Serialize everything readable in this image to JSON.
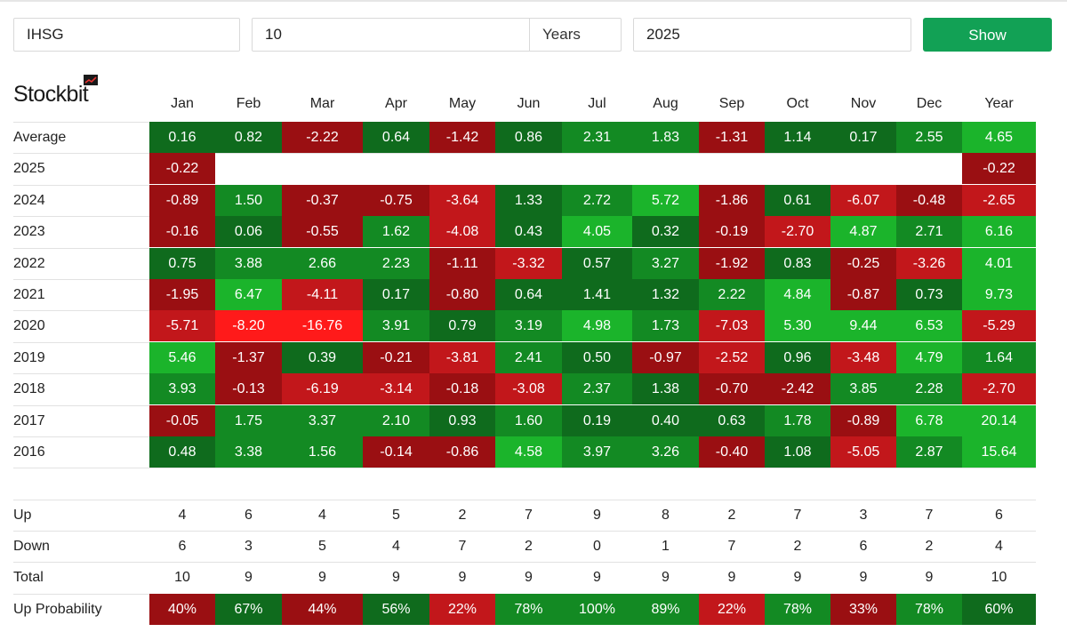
{
  "controls": {
    "symbol": "IHSG",
    "years_value": "10",
    "years_unit": "Years",
    "year": "2025",
    "show_label": "Show"
  },
  "brand": {
    "name": "Stockbit"
  },
  "table": {
    "columns": [
      "Jan",
      "Feb",
      "Mar",
      "Apr",
      "May",
      "Jun",
      "Jul",
      "Aug",
      "Sep",
      "Oct",
      "Nov",
      "Dec",
      "Year"
    ],
    "rows": [
      {
        "label": "Average",
        "values": [
          "0.16",
          "0.82",
          "-2.22",
          "0.64",
          "-1.42",
          "0.86",
          "2.31",
          "1.83",
          "-1.31",
          "1.14",
          "0.17",
          "2.55",
          "4.65"
        ]
      },
      {
        "label": "2025",
        "values": [
          "-0.22",
          "",
          "",
          "",
          "",
          "",
          "",
          "",
          "",
          "",
          "",
          "",
          "-0.22"
        ]
      },
      {
        "label": "2024",
        "values": [
          "-0.89",
          "1.50",
          "-0.37",
          "-0.75",
          "-3.64",
          "1.33",
          "2.72",
          "5.72",
          "-1.86",
          "0.61",
          "-6.07",
          "-0.48",
          "-2.65"
        ]
      },
      {
        "label": "2023",
        "values": [
          "-0.16",
          "0.06",
          "-0.55",
          "1.62",
          "-4.08",
          "0.43",
          "4.05",
          "0.32",
          "-0.19",
          "-2.70",
          "4.87",
          "2.71",
          "6.16"
        ]
      },
      {
        "label": "2022",
        "values": [
          "0.75",
          "3.88",
          "2.66",
          "2.23",
          "-1.11",
          "-3.32",
          "0.57",
          "3.27",
          "-1.92",
          "0.83",
          "-0.25",
          "-3.26",
          "4.01"
        ]
      },
      {
        "label": "2021",
        "values": [
          "-1.95",
          "6.47",
          "-4.11",
          "0.17",
          "-0.80",
          "0.64",
          "1.41",
          "1.32",
          "2.22",
          "4.84",
          "-0.87",
          "0.73",
          "9.73"
        ]
      },
      {
        "label": "2020",
        "values": [
          "-5.71",
          "-8.20",
          "-16.76",
          "3.91",
          "0.79",
          "3.19",
          "4.98",
          "1.73",
          "-7.03",
          "5.30",
          "9.44",
          "6.53",
          "-5.29"
        ]
      },
      {
        "label": "2019",
        "values": [
          "5.46",
          "-1.37",
          "0.39",
          "-0.21",
          "-3.81",
          "2.41",
          "0.50",
          "-0.97",
          "-2.52",
          "0.96",
          "-3.48",
          "4.79",
          "1.64"
        ]
      },
      {
        "label": "2018",
        "values": [
          "3.93",
          "-0.13",
          "-6.19",
          "-3.14",
          "-0.18",
          "-3.08",
          "2.37",
          "1.38",
          "-0.70",
          "-2.42",
          "3.85",
          "2.28",
          "-2.70"
        ]
      },
      {
        "label": "2017",
        "values": [
          "-0.05",
          "1.75",
          "3.37",
          "2.10",
          "0.93",
          "1.60",
          "0.19",
          "0.40",
          "0.63",
          "1.78",
          "-0.89",
          "6.78",
          "20.14"
        ]
      },
      {
        "label": "2016",
        "values": [
          "0.48",
          "3.38",
          "1.56",
          "-0.14",
          "-0.86",
          "4.58",
          "3.97",
          "3.26",
          "-0.40",
          "1.08",
          "-5.05",
          "2.87",
          "15.64"
        ]
      }
    ]
  },
  "stats": {
    "up": {
      "label": "Up",
      "values": [
        "4",
        "6",
        "4",
        "5",
        "2",
        "7",
        "9",
        "8",
        "2",
        "7",
        "3",
        "7",
        "6"
      ]
    },
    "down": {
      "label": "Down",
      "values": [
        "6",
        "3",
        "5",
        "4",
        "7",
        "2",
        "0",
        "1",
        "7",
        "2",
        "6",
        "2",
        "4"
      ]
    },
    "total": {
      "label": "Total",
      "values": [
        "10",
        "9",
        "9",
        "9",
        "9",
        "9",
        "9",
        "9",
        "9",
        "9",
        "9",
        "9",
        "10"
      ]
    },
    "up_probability": {
      "label": "Up Probability",
      "values": [
        "40%",
        "67%",
        "44%",
        "56%",
        "22%",
        "78%",
        "100%",
        "89%",
        "22%",
        "78%",
        "33%",
        "78%",
        "60%"
      ]
    }
  },
  "colors": {
    "pos_dark": "#0f6b1d",
    "pos_mid": "#138a23",
    "pos_bright": "#1bb42b",
    "neg_dark": "#9a0f12",
    "neg_mid": "#c2171b",
    "neg_bright": "#ff1a1a",
    "button": "#12a155"
  }
}
